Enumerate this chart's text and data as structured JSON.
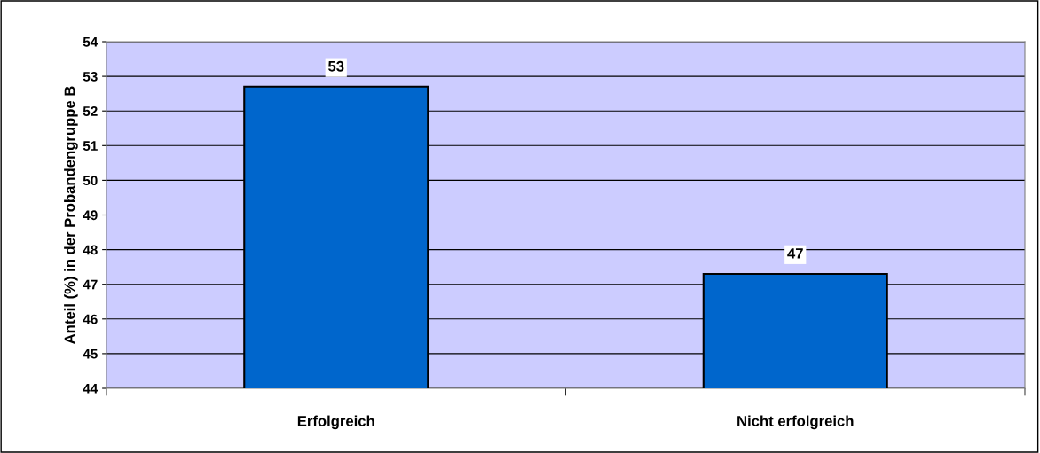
{
  "chart_data": {
    "type": "bar",
    "ylabel": "Anteil (%) in der Probandengruppe B",
    "categories": [
      "Erfolgreich",
      "Nicht erfolgreich"
    ],
    "values": [
      52.7,
      47.3
    ],
    "value_labels": [
      "53",
      "47"
    ],
    "color": "#0066cc",
    "ylim": [
      44,
      54
    ],
    "yticks": [
      44,
      45,
      46,
      47,
      48,
      49,
      50,
      51,
      52,
      53,
      54
    ],
    "grid": "y"
  }
}
